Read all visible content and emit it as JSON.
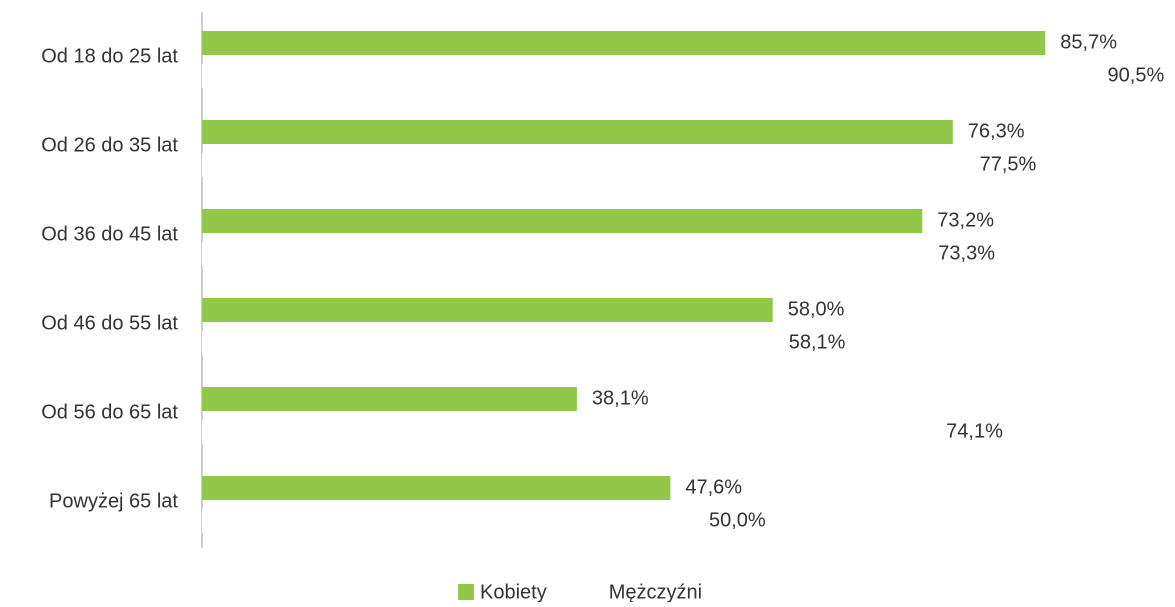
{
  "chart_data": {
    "type": "bar",
    "orientation": "horizontal",
    "categories": [
      "Od 18 do 25 lat",
      "Od 26 do 35 lat",
      "Od 36 do 45 lat",
      "Od 46 do 55 lat",
      "Od 56 do 65 lat",
      "Powyżej 65 lat"
    ],
    "series": [
      {
        "name": "Kobiety",
        "color": "#92c84a",
        "values": [
          85.7,
          76.3,
          73.2,
          58.0,
          38.1,
          47.6
        ],
        "value_labels": [
          "85,7%",
          "76,3%",
          "73,2%",
          "58,0%",
          "38,1%",
          "47,6%"
        ]
      },
      {
        "name": "Mężczyźni",
        "color": "#ffffff",
        "values": [
          90.5,
          77.5,
          73.3,
          58.1,
          74.1,
          50.0
        ],
        "value_labels": [
          "90,5%",
          "77,5%",
          "73,3%",
          "58,1%",
          "74,1%",
          "50,0%"
        ]
      }
    ],
    "xlim": [
      0,
      100
    ],
    "legend": "bottom"
  }
}
